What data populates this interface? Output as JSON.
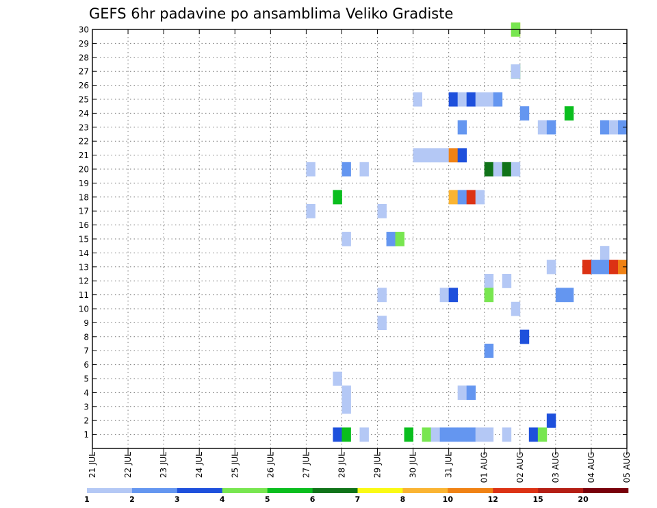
{
  "chart_data": {
    "type": "heatmap",
    "title": "GEFS 6hr padavine po ansamblima Veliko Gradiste",
    "xlabel": "",
    "ylabel": "",
    "x_ticks": [
      "21 JUL",
      "22 JUL",
      "23 JUL",
      "24 JUL",
      "25 JUL",
      "26 JUL",
      "27 JUL",
      "28 JUL",
      "29 JUL",
      "30 JUL",
      "31 JUL",
      "01 AUG",
      "02 AUG",
      "03 AUG",
      "04 AUG",
      "05 AUG"
    ],
    "y_ticks": [
      "1",
      "2",
      "3",
      "4",
      "5",
      "6",
      "7",
      "8",
      "9",
      "10",
      "11",
      "12",
      "13",
      "14",
      "15",
      "16",
      "17",
      "18",
      "19",
      "20",
      "21",
      "22",
      "23",
      "24",
      "25",
      "26",
      "27",
      "28",
      "29",
      "30"
    ],
    "xlim_days": [
      0,
      15
    ],
    "ylim": [
      0,
      30
    ],
    "grid": true,
    "colorbar": {
      "levels": [
        "1",
        "2",
        "3",
        "4",
        "5",
        "6",
        "7",
        "8",
        "10",
        "12",
        "15",
        "20"
      ],
      "colors": [
        "#b4c8f5",
        "#6496f0",
        "#1e50dc",
        "#78e650",
        "#0abe1e",
        "#107319",
        "#fafa14",
        "#fab432",
        "#f08214",
        "#dc3214",
        "#b41e14",
        "#78000a"
      ]
    },
    "cells": [
      [
        11.75,
        30,
        7
      ],
      [
        11.75,
        30,
        3
      ],
      [
        11.75,
        27,
        0
      ],
      [
        11.75,
        27,
        0
      ],
      [
        11.75,
        27,
        3
      ],
      [
        11.75,
        27,
        0
      ],
      [
        9.0,
        25,
        0
      ],
      [
        10.0,
        25,
        2
      ],
      [
        10.25,
        25,
        0
      ],
      [
        10.5,
        25,
        2
      ],
      [
        10.75,
        25,
        0
      ],
      [
        11.0,
        25,
        0
      ],
      [
        11.25,
        25,
        1
      ],
      [
        12.0,
        24,
        1
      ],
      [
        13.25,
        24,
        4
      ],
      [
        10.25,
        23,
        1
      ],
      [
        12.5,
        23,
        0
      ],
      [
        12.75,
        23,
        1
      ],
      [
        14.25,
        23,
        1
      ],
      [
        14.5,
        23,
        0
      ],
      [
        14.75,
        23,
        1
      ],
      [
        9.0,
        21,
        0
      ],
      [
        9.25,
        21,
        0
      ],
      [
        9.5,
        21,
        0
      ],
      [
        9.75,
        21,
        0
      ],
      [
        10.0,
        21,
        8
      ],
      [
        10.25,
        21,
        2
      ],
      [
        6.0,
        20,
        0
      ],
      [
        7.0,
        20,
        1
      ],
      [
        7.5,
        20,
        0
      ],
      [
        11.0,
        20,
        5
      ],
      [
        11.25,
        20,
        0
      ],
      [
        11.5,
        20,
        5
      ],
      [
        11.75,
        20,
        0
      ],
      [
        6.75,
        18,
        4
      ],
      [
        10.0,
        18,
        7
      ],
      [
        10.25,
        18,
        1
      ],
      [
        10.5,
        18,
        9
      ],
      [
        10.75,
        18,
        0
      ],
      [
        6.0,
        17,
        0
      ],
      [
        8.0,
        17,
        0
      ],
      [
        7.0,
        15,
        0
      ],
      [
        8.25,
        15,
        1
      ],
      [
        8.5,
        15,
        3
      ],
      [
        14.25,
        14,
        0
      ],
      [
        12.75,
        13,
        0
      ],
      [
        13.75,
        13,
        9
      ],
      [
        14.0,
        13,
        1
      ],
      [
        14.25,
        13,
        1
      ],
      [
        14.5,
        13,
        9
      ],
      [
        14.75,
        13,
        8
      ],
      [
        11.0,
        12,
        0
      ],
      [
        11.5,
        12,
        0
      ],
      [
        8.0,
        11,
        0
      ],
      [
        9.75,
        11,
        0
      ],
      [
        10.0,
        11,
        2
      ],
      [
        11.0,
        11,
        3
      ],
      [
        13.0,
        11,
        1
      ],
      [
        13.25,
        11,
        1
      ],
      [
        11.75,
        10,
        0
      ],
      [
        8.0,
        9,
        0
      ],
      [
        12.0,
        8,
        2
      ],
      [
        11.0,
        7,
        1
      ],
      [
        6.75,
        5,
        0
      ],
      [
        7.0,
        4,
        0
      ],
      [
        10.25,
        4,
        0
      ],
      [
        10.5,
        4,
        1
      ],
      [
        7.0,
        3,
        0
      ],
      [
        12.75,
        2,
        2
      ],
      [
        6.75,
        1,
        2
      ],
      [
        7.0,
        1,
        4
      ],
      [
        7.5,
        1,
        0
      ],
      [
        8.75,
        1,
        4
      ],
      [
        9.25,
        1,
        3
      ],
      [
        9.5,
        1,
        0
      ],
      [
        9.75,
        1,
        1
      ],
      [
        10.0,
        1,
        1
      ],
      [
        10.25,
        1,
        1
      ],
      [
        10.5,
        1,
        1
      ],
      [
        10.75,
        1,
        0
      ],
      [
        11.0,
        1,
        0
      ],
      [
        11.5,
        1,
        0
      ],
      [
        12.25,
        1,
        2
      ],
      [
        12.5,
        1,
        3
      ]
    ]
  }
}
